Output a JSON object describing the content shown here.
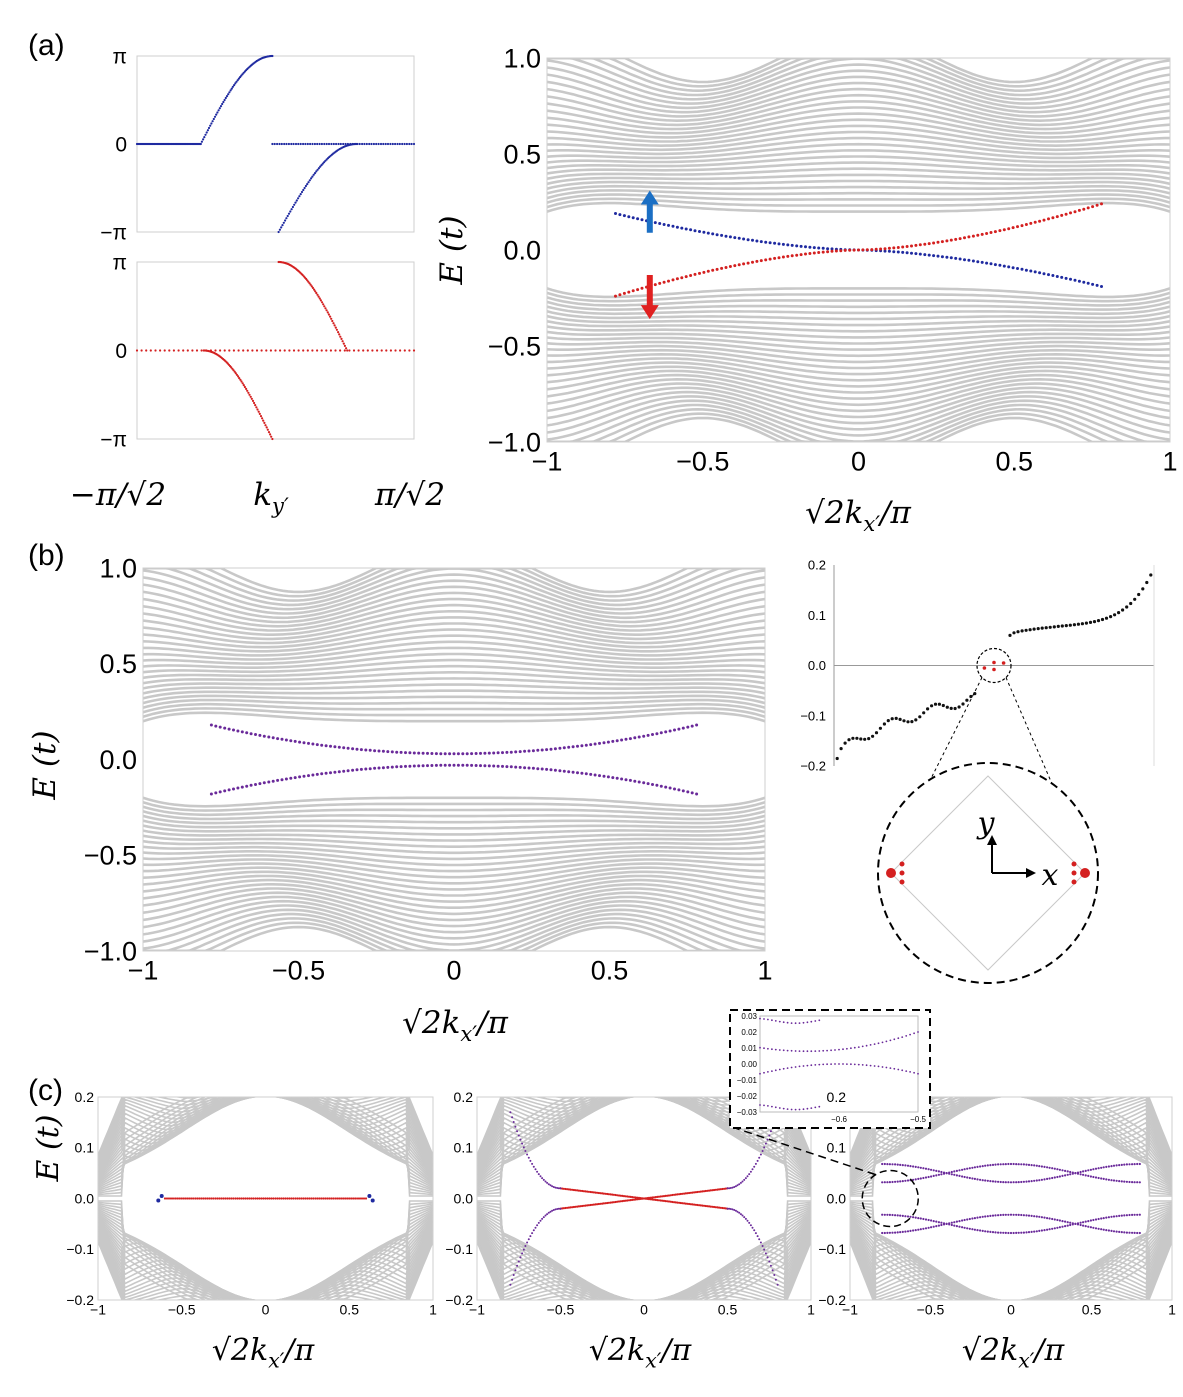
{
  "figure": {
    "panel_labels": [
      "(a)",
      "(b)",
      "(c)"
    ]
  },
  "colors": {
    "bulk": "#c8c8c8",
    "blue_edge": "#1f2aa0",
    "red_edge": "#d42020",
    "purple_edge": "#6a2a9a",
    "arrow_blue": "#1b6fc4",
    "arrow_red": "#e02020",
    "black_points": "#111111"
  },
  "chart_data": [
    {
      "id": "a-top-wilson",
      "type": "scatter",
      "ylim": [
        -3.14159,
        3.14159
      ],
      "xlim": [
        -2.2214,
        2.2214
      ],
      "yticks": [
        "π",
        "0",
        "−π"
      ],
      "series": [
        {
          "color": "blue",
          "segments": [
            {
              "x": [
                -2.2214,
                -1.2
              ],
              "y": [
                0,
                0
              ]
            },
            {
              "x": [
                -1.2,
                -0.05
              ],
              "y": [
                0,
                3.14159
              ],
              "curve": "rise"
            },
            {
              "x": [
                0.05,
                1.3
              ],
              "y": [
                -3.14159,
                0
              ],
              "curve": "rise"
            },
            {
              "x": [
                -0.05,
                2.2214
              ],
              "y": [
                0,
                0
              ]
            }
          ]
        }
      ]
    },
    {
      "id": "a-bottom-wilson",
      "type": "scatter",
      "ylim": [
        -3.14159,
        3.14159
      ],
      "xlim": [
        -2.2214,
        2.2214
      ],
      "yticks": [
        "π",
        "0",
        "−π"
      ],
      "xticks": [
        "−π/√2",
        "π/√2"
      ],
      "xlabel": "k_y′",
      "series": [
        {
          "color": "red",
          "segments": [
            {
              "x": [
                -2.2214,
                2.2214
              ],
              "y": [
                0,
                0
              ]
            },
            {
              "x": [
                0.05,
                1.15
              ],
              "y": [
                3.14159,
                0
              ],
              "curve": "fall"
            },
            {
              "x": [
                -1.15,
                -0.05
              ],
              "y": [
                0,
                -3.14159
              ],
              "curve": "fall"
            }
          ]
        }
      ]
    },
    {
      "id": "a-spectrum",
      "type": "scatter",
      "xlim": [
        -1,
        1
      ],
      "ylim": [
        -1,
        1
      ],
      "xticks": [
        "−1",
        "−0.5",
        "0",
        "0.5",
        "1"
      ],
      "yticks": [
        "1.0",
        "0.5",
        "0.0",
        "−0.5",
        "−1.0"
      ],
      "xlabel": "√2k_x′/π",
      "ylabel": "E (t)",
      "edge_states": [
        {
          "color": "blue",
          "x": [
            -0.78,
            0.78
          ],
          "y": [
            0.19,
            -0.19
          ]
        },
        {
          "color": "red",
          "x": [
            -0.78,
            0.78
          ],
          "y": [
            -0.24,
            0.24
          ]
        }
      ],
      "arrows": [
        {
          "direction": "up",
          "color": "blue",
          "x": -0.67,
          "y": [
            0.09,
            0.31
          ]
        },
        {
          "direction": "down",
          "color": "red",
          "x": -0.67,
          "y": [
            -0.13,
            -0.36
          ]
        }
      ]
    },
    {
      "id": "b-spectrum",
      "type": "scatter",
      "xlim": [
        -1,
        1
      ],
      "ylim": [
        -1,
        1
      ],
      "xticks": [
        "−1",
        "−0.5",
        "0",
        "0.5",
        "1"
      ],
      "yticks": [
        "1.0",
        "0.5",
        "0.0",
        "−0.5",
        "−1.0"
      ],
      "xlabel": "√2k_x′/π",
      "ylabel": "E (t)",
      "edge_states": [
        {
          "color": "purple",
          "x": [
            -0.78,
            0.78
          ],
          "gap": 0.03,
          "end": 0.18
        }
      ]
    },
    {
      "id": "b-eigenvalues",
      "type": "scatter",
      "ylim": [
        -0.2,
        0.2
      ],
      "yticks": [
        "0.2",
        "0.1",
        "0.0",
        "−0.1",
        "−0.2"
      ],
      "zero_modes": {
        "color": "red",
        "count": 4
      }
    },
    {
      "id": "b-inset-sample",
      "type": "diagram",
      "axes_labels": [
        "y",
        "x"
      ]
    },
    {
      "id": "c1-spectrum",
      "type": "scatter",
      "xlim": [
        -1,
        1
      ],
      "ylim": [
        -0.2,
        0.2
      ],
      "xticks": [
        "−1",
        "−0.5",
        "0",
        "0.5",
        "1"
      ],
      "yticks": [
        "0.2",
        "0.1",
        "0.0",
        "−0.1",
        "−0.2"
      ],
      "xlabel": "√2k_x′/π",
      "ylabel": "E (t)",
      "edge_states": [
        {
          "color": "red",
          "x": [
            -0.6,
            0.6
          ],
          "y": [
            0,
            0
          ]
        }
      ]
    },
    {
      "id": "c2-spectrum",
      "type": "scatter",
      "xlim": [
        -1,
        1
      ],
      "ylim": [
        -0.2,
        0.2
      ],
      "xticks": [
        "−1",
        "−0.5",
        "0",
        "0.5",
        "1"
      ],
      "yticks": [
        "0.2",
        "0.1",
        "0.0",
        "−0.1",
        "−0.2"
      ],
      "xlabel": "√2k_x′/π",
      "edge_states": [
        {
          "color": "red",
          "x": [
            -0.5,
            0.5
          ],
          "y": [
            -0.02,
            0.02
          ]
        }
      ]
    },
    {
      "id": "c3-spectrum",
      "type": "scatter",
      "xlim": [
        -1,
        1
      ],
      "ylim": [
        -0.2,
        0.2
      ],
      "xticks": [
        "−1",
        "−0.5",
        "0",
        "0.5",
        "1"
      ],
      "yticks": [
        "0.2",
        "0.1",
        "0.0",
        "−0.1",
        "−0.2"
      ],
      "xlabel": "√2k_x′/π",
      "edge_states": [
        {
          "color": "purple",
          "x": [
            -0.8,
            0.8
          ]
        }
      ]
    },
    {
      "id": "c3-zoom-inset",
      "type": "scatter",
      "xlim": [
        -0.7,
        -0.5
      ],
      "ylim": [
        -0.03,
        0.03
      ],
      "xticks": [
        "−0.6",
        "−0.5"
      ],
      "yticks": [
        "0.03",
        "0.02",
        "0.01",
        "0.00",
        "−0.01",
        "−0.02",
        "−0.03"
      ]
    }
  ]
}
